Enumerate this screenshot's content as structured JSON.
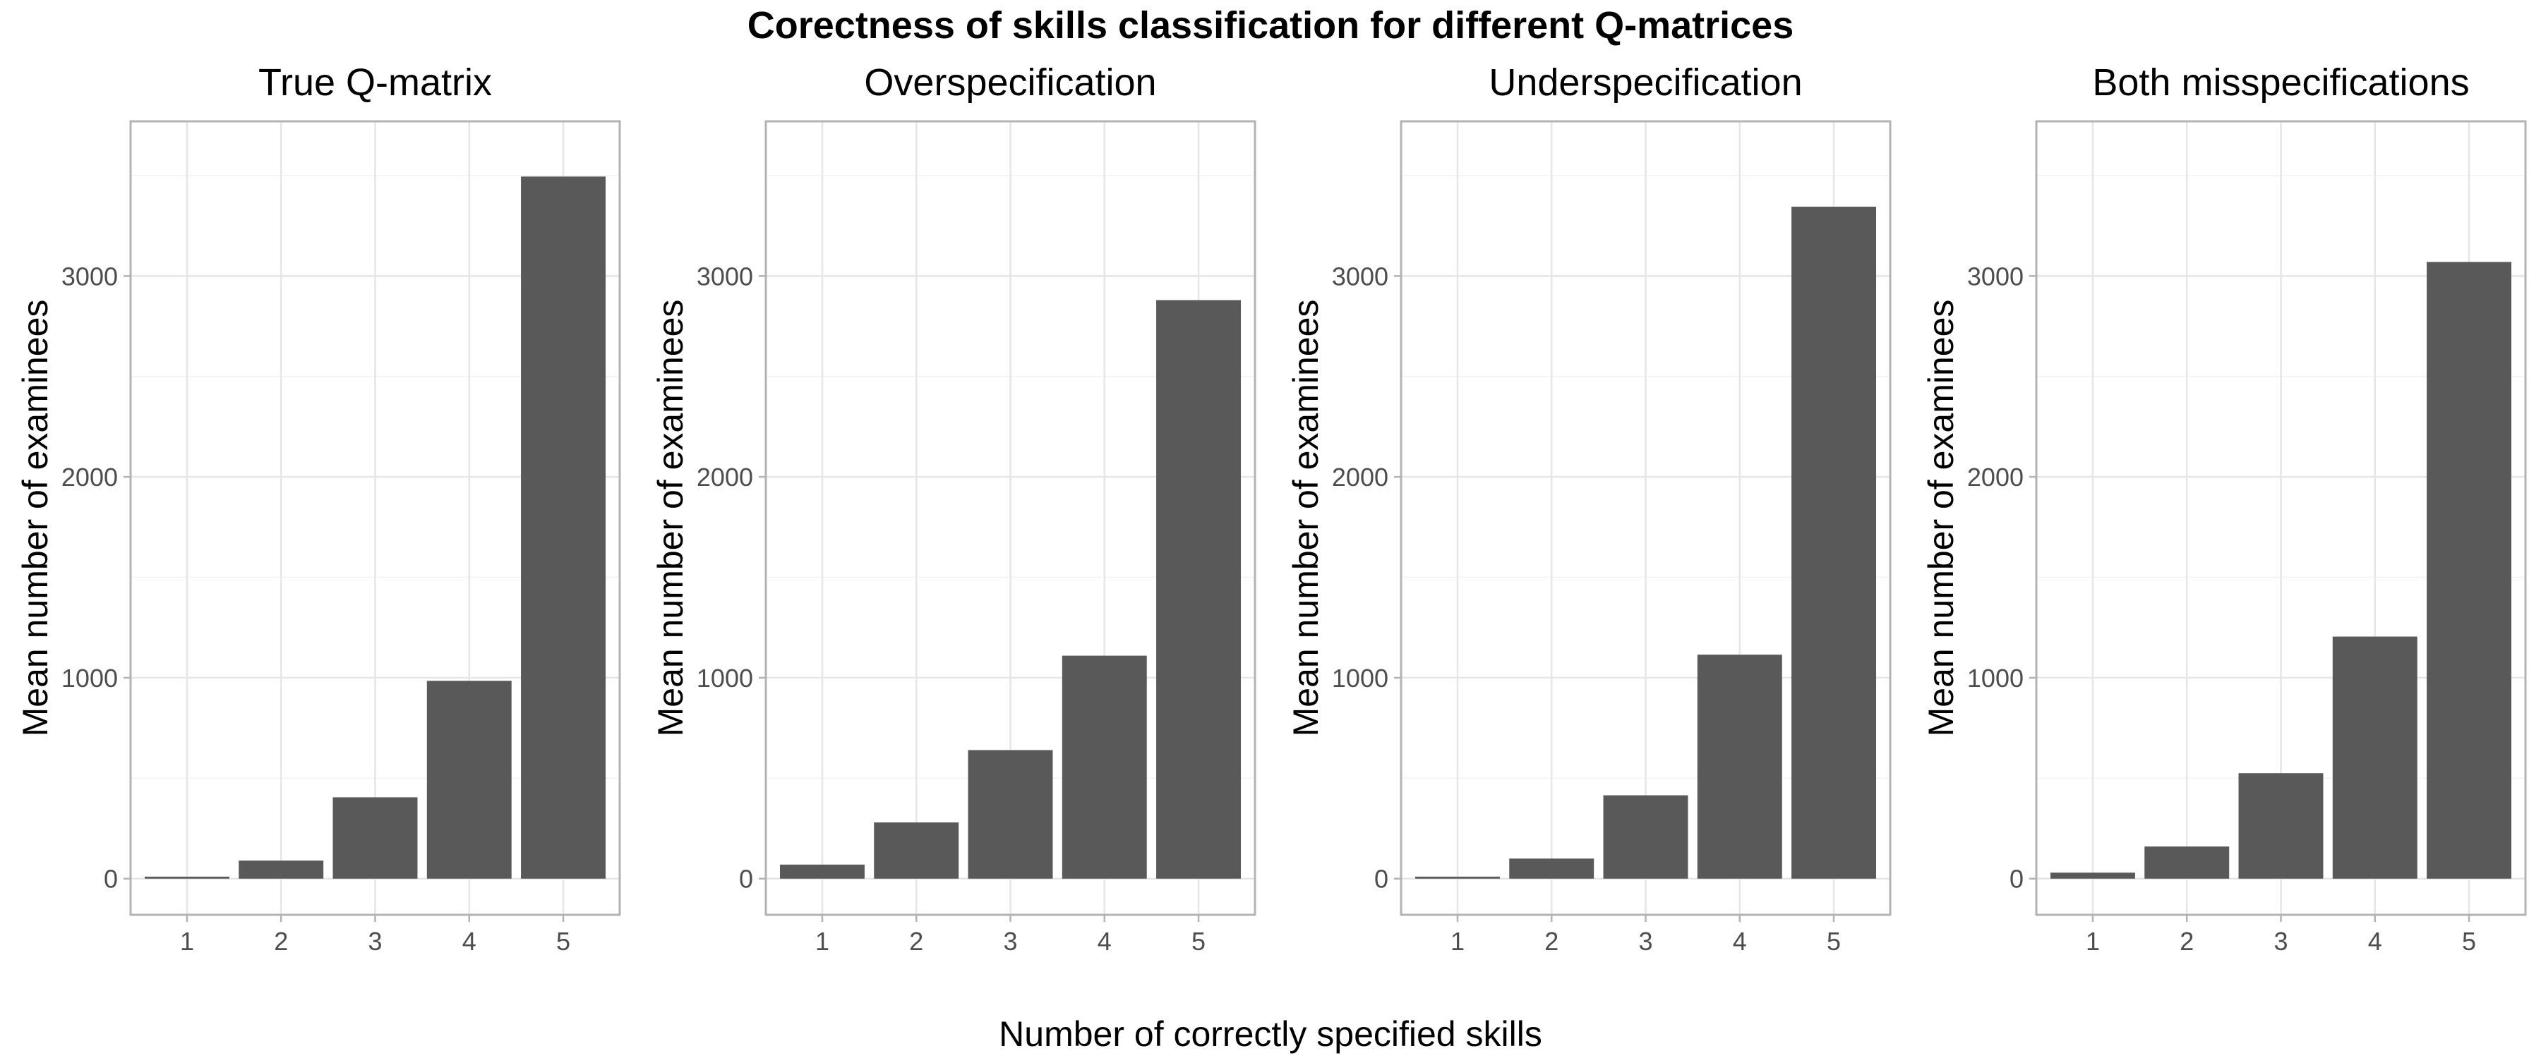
{
  "figure": {
    "title": "Corectness of skills classification for different Q-matrices",
    "xlabel": "Number of correctly specified skills",
    "ylabel": "Mean number of examinees"
  },
  "chart_data": [
    {
      "type": "bar",
      "title": "True Q-matrix",
      "xlabel": "Number of correctly specified skills",
      "ylabel": "Mean number of examinees",
      "categories": [
        "1",
        "2",
        "3",
        "4",
        "5"
      ],
      "values": [
        10,
        90,
        405,
        985,
        3495
      ],
      "ylim": [
        -180,
        3770
      ],
      "yticks": [
        0,
        1000,
        2000,
        3000
      ],
      "grid": true,
      "bar_color": "#595959"
    },
    {
      "type": "bar",
      "title": "Overspecification",
      "xlabel": "Number of correctly specified skills",
      "ylabel": "Mean number of examinees",
      "categories": [
        "1",
        "2",
        "3",
        "4",
        "5"
      ],
      "values": [
        70,
        280,
        640,
        1110,
        2880
      ],
      "ylim": [
        -180,
        3770
      ],
      "yticks": [
        0,
        1000,
        2000,
        3000
      ],
      "grid": true,
      "bar_color": "#595959"
    },
    {
      "type": "bar",
      "title": "Underspecification",
      "xlabel": "Number of correctly specified skills",
      "ylabel": "Mean number of examinees",
      "categories": [
        "1",
        "2",
        "3",
        "4",
        "5"
      ],
      "values": [
        10,
        100,
        415,
        1115,
        3345
      ],
      "ylim": [
        -180,
        3770
      ],
      "yticks": [
        0,
        1000,
        2000,
        3000
      ],
      "grid": true,
      "bar_color": "#595959"
    },
    {
      "type": "bar",
      "title": "Both misspecifications",
      "xlabel": "Number of correctly specified skills",
      "ylabel": "Mean number of examinees",
      "categories": [
        "1",
        "2",
        "3",
        "4",
        "5"
      ],
      "values": [
        30,
        160,
        525,
        1205,
        3070
      ],
      "ylim": [
        -180,
        3770
      ],
      "yticks": [
        0,
        1000,
        2000,
        3000
      ],
      "grid": true,
      "bar_color": "#595959"
    }
  ]
}
